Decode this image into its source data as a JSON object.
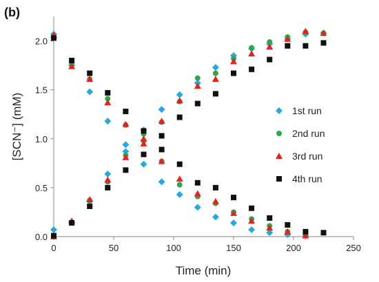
{
  "chart_data": {
    "type": "scatter",
    "panel_label": "(b)",
    "xlabel": "Time (min)",
    "ylabel": "[SCN⁻] (mM)",
    "xlim": [
      0,
      250
    ],
    "ylim": [
      0,
      2.25
    ],
    "x_ticks": [
      0,
      50,
      100,
      150,
      200,
      250
    ],
    "y_ticks": [
      "0.0",
      "0.5",
      "1.0",
      "1.5",
      "2.0"
    ],
    "y_tick_values": [
      0,
      0.5,
      1.0,
      1.5,
      2.0
    ],
    "grid": false,
    "legend_position": "right",
    "x": [
      0,
      15,
      30,
      45,
      60,
      75,
      90,
      105,
      120,
      135,
      150,
      165,
      180,
      195,
      210,
      225
    ],
    "series": [
      {
        "name": "1st run",
        "marker": "diamond",
        "color": "#29a8e0",
        "groups": [
          [
            2.07,
            1.75,
            1.48,
            1.18,
            0.94,
            0.74,
            0.56,
            0.43,
            0.3,
            0.2,
            0.14,
            0.07,
            0.04,
            0.02,
            0.01,
            null
          ],
          [
            0.07,
            0.15,
            0.36,
            0.64,
            0.87,
            1.09,
            1.3,
            1.45,
            1.57,
            1.73,
            1.85,
            1.92,
            1.97,
            2.02,
            2.07,
            2.08
          ]
        ]
      },
      {
        "name": "2nd run",
        "marker": "circle",
        "color": "#2ea84a",
        "groups": [
          [
            2.05,
            1.76,
            1.61,
            1.41,
            1.14,
            1.05,
            0.77,
            0.53,
            0.41,
            0.34,
            0.25,
            0.18,
            0.11,
            0.05,
            0.02,
            null
          ],
          [
            0.01,
            0.15,
            0.37,
            0.56,
            0.83,
            0.98,
            1.17,
            1.38,
            1.62,
            1.67,
            1.82,
            1.93,
            1.99,
            2.04,
            2.09,
            2.08
          ]
        ]
      },
      {
        "name": "3rd run",
        "marker": "triangle",
        "color": "#e42320",
        "groups": [
          [
            2.06,
            1.74,
            1.61,
            1.37,
            1.15,
            1.0,
            0.77,
            0.59,
            0.44,
            0.36,
            0.24,
            0.16,
            0.09,
            0.05,
            0.01,
            null
          ],
          [
            0.0,
            0.16,
            0.38,
            0.58,
            0.81,
            0.95,
            1.18,
            1.39,
            1.54,
            1.61,
            1.79,
            1.87,
            1.94,
            2.02,
            2.1,
            2.08
          ]
        ]
      },
      {
        "name": "4th run",
        "marker": "square",
        "color": "#111111",
        "groups": [
          [
            2.03,
            1.8,
            1.67,
            1.47,
            1.28,
            1.08,
            0.89,
            0.74,
            0.55,
            0.5,
            0.4,
            0.29,
            0.19,
            0.12,
            0.05,
            0.04
          ],
          [
            0.01,
            0.14,
            0.31,
            0.5,
            0.68,
            0.84,
            1.03,
            1.22,
            1.36,
            1.46,
            1.67,
            1.71,
            1.81,
            1.95,
            1.95,
            1.98
          ]
        ]
      }
    ]
  }
}
